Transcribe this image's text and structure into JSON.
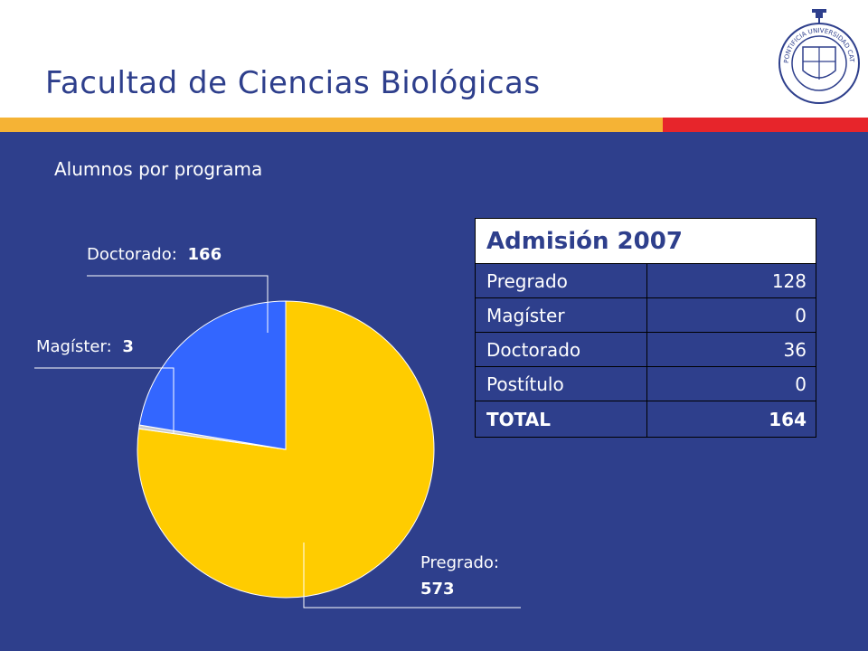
{
  "slide": {
    "title": "Facultad de Ciencias Biológicas",
    "subtitle": "Alumnos por programa",
    "crest_text": "PONTIFICIA UNIVERSIDAD CATOLICA DE CHILE"
  },
  "colors": {
    "background": "#2E3F8C",
    "header": "#FFFFFF",
    "stripe_orange": "#F5B335",
    "stripe_red": "#E7252B",
    "pregrado": "#FFCC00",
    "doctorado": "#3366FF",
    "magister": "#CCCCCC"
  },
  "chart_data": {
    "type": "pie",
    "title": "",
    "slices": [
      {
        "name": "Pregrado",
        "label": "Pregrado:",
        "value": 573,
        "color": "#FFCC00"
      },
      {
        "name": "Magíster",
        "label": "Magíster:",
        "value": 3,
        "color": "#CCCCCC"
      },
      {
        "name": "Doctorado",
        "label": "Doctorado:",
        "value": 166,
        "color": "#3366FF"
      }
    ]
  },
  "table": {
    "header": "Admisión 2007",
    "rows": [
      {
        "label": "Pregrado",
        "value": "128"
      },
      {
        "label": "Magíster",
        "value": "0"
      },
      {
        "label": "Doctorado",
        "value": "36"
      },
      {
        "label": "Postítulo",
        "value": "0"
      }
    ],
    "total": {
      "label": "TOTAL",
      "value": "164"
    }
  }
}
